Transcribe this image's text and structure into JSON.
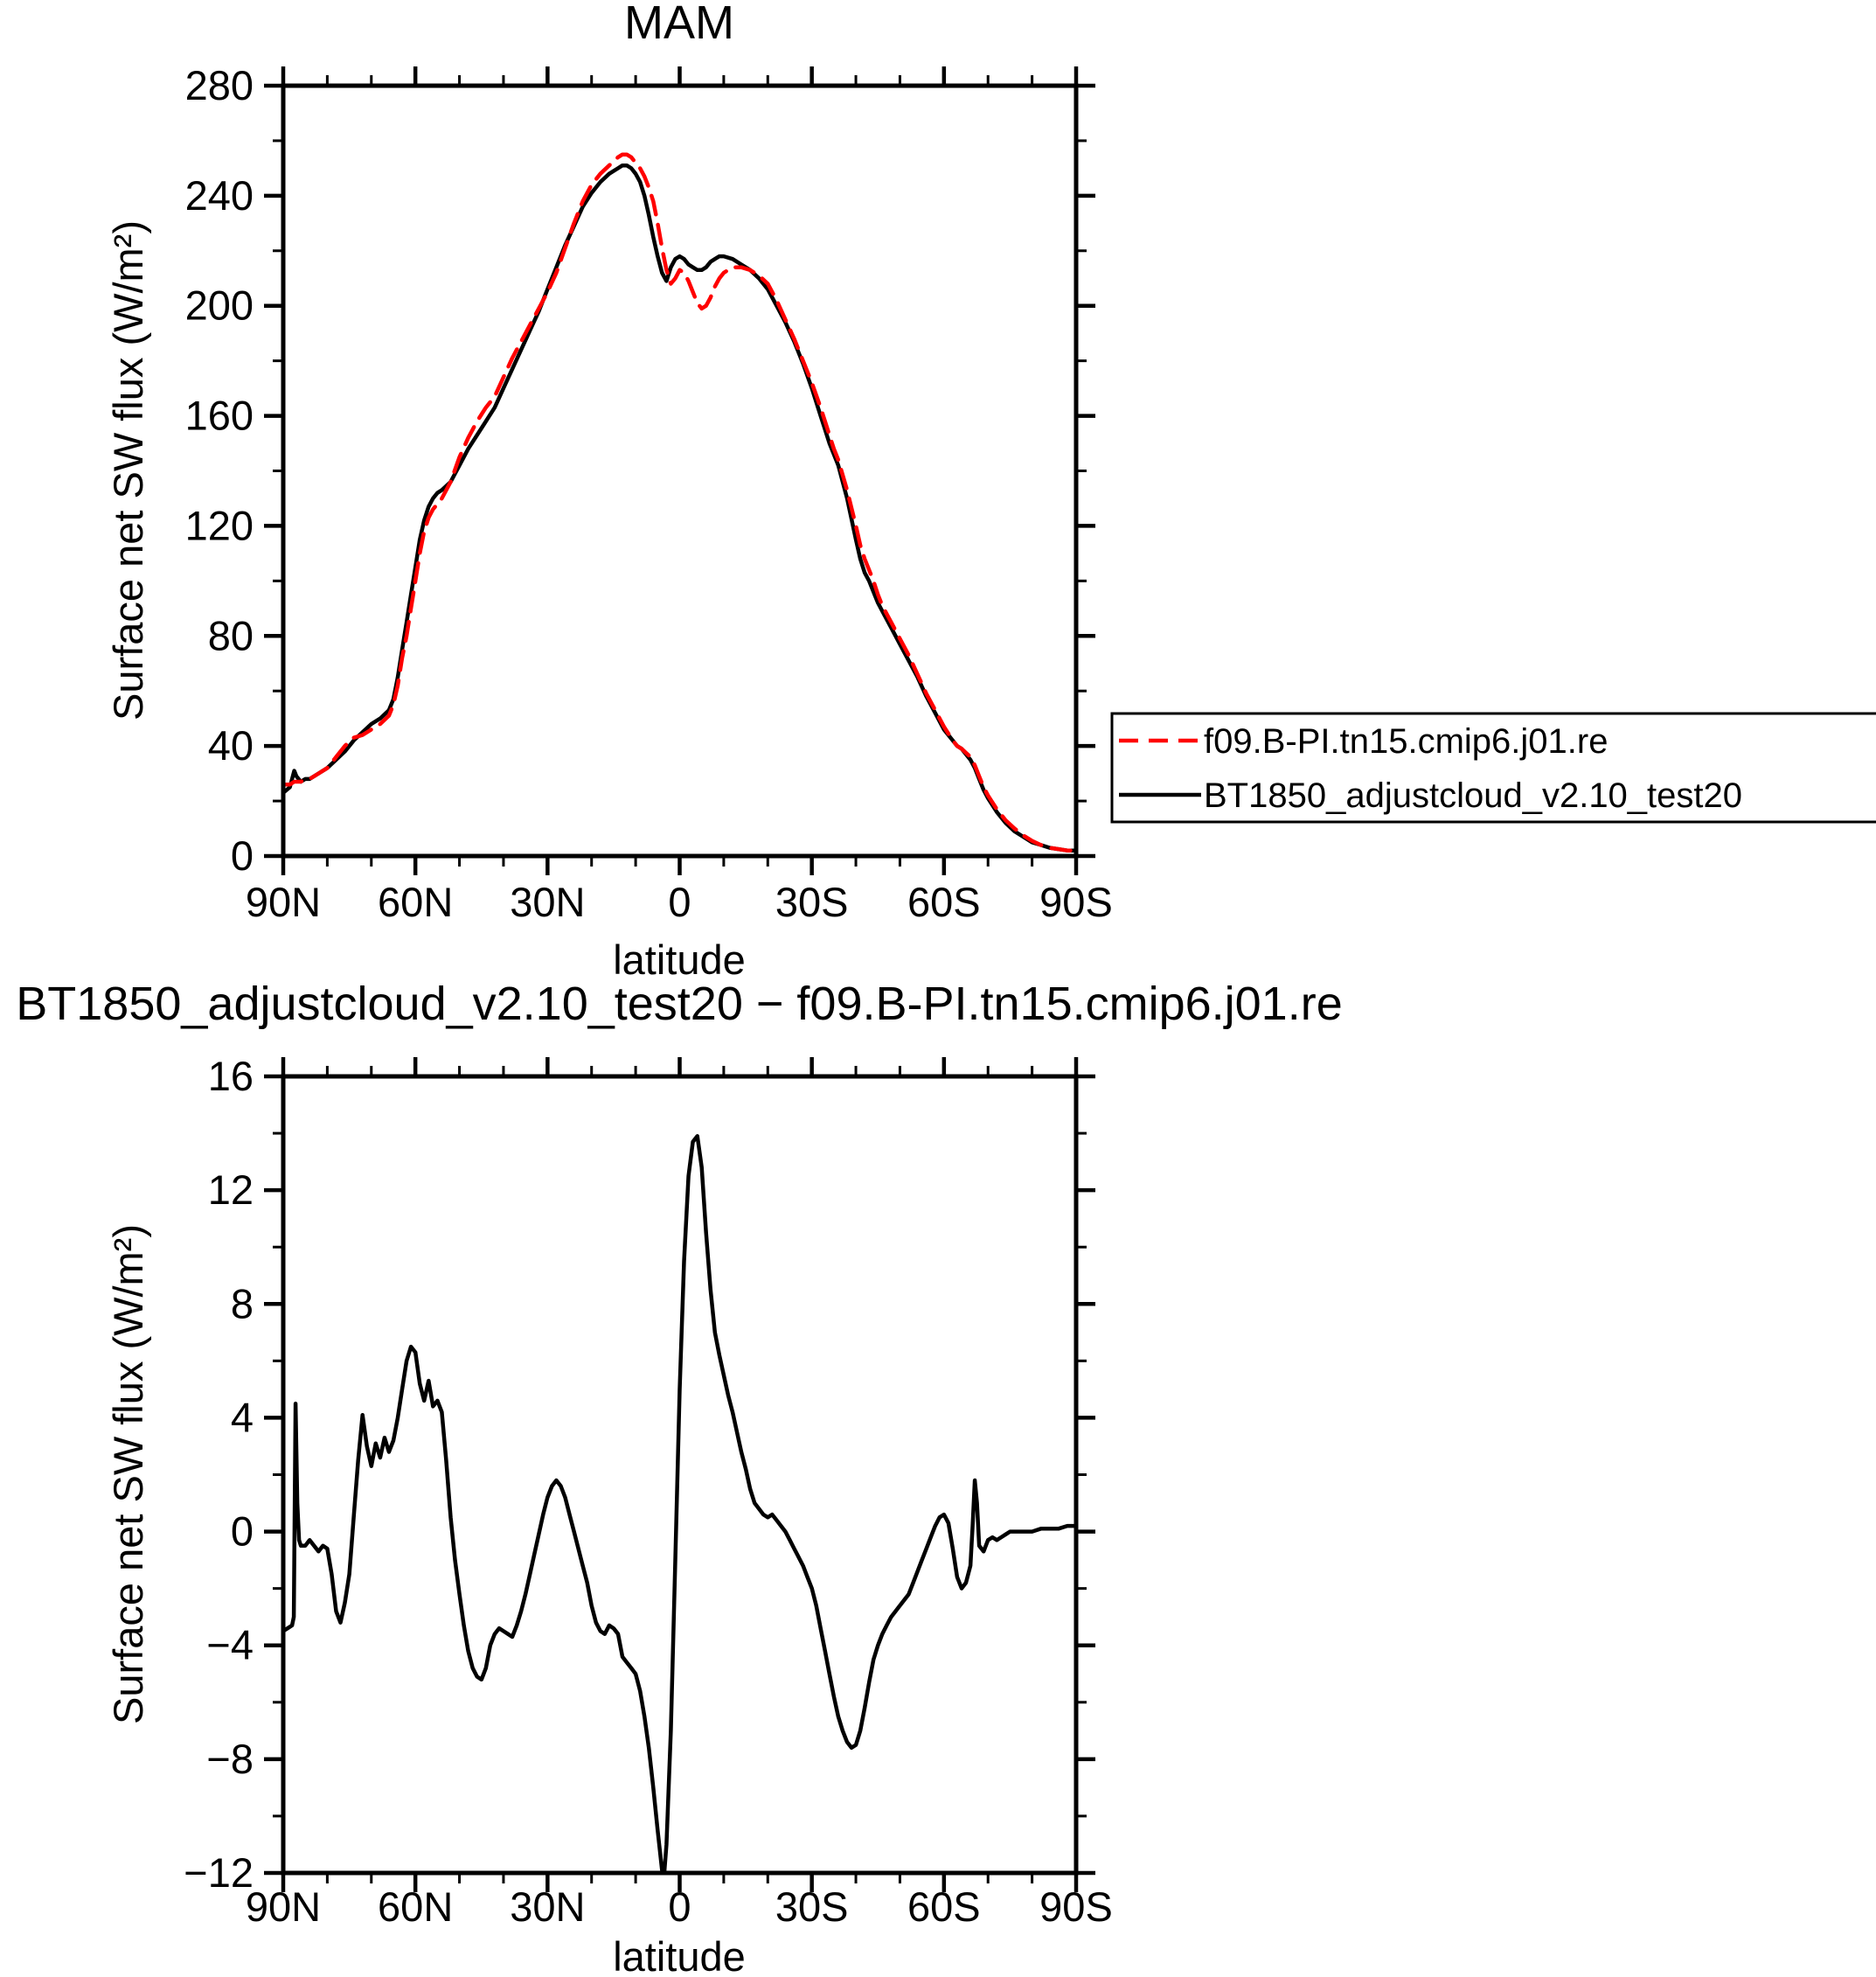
{
  "figure": {
    "background": "#ffffff",
    "text_color": "#000000",
    "frame_color": "#000000"
  },
  "chart_data": [
    {
      "type": "line",
      "title": "MAM",
      "xlabel": "latitude",
      "ylabel": "Surface net SW flux (W/m²)",
      "xlim": [
        90,
        -90
      ],
      "ylim": [
        0,
        280
      ],
      "grid": false,
      "legend_position": "outside-right",
      "xtick_values": [
        90,
        60,
        30,
        0,
        -30,
        -60,
        -90
      ],
      "xtick_labels": [
        "90N",
        "60N",
        "30N",
        "0",
        "30S",
        "60S",
        "90S"
      ],
      "xminor_step": 10,
      "ytick_values": [
        0,
        40,
        80,
        120,
        160,
        200,
        240,
        280
      ],
      "ytick_labels": [
        "0",
        "40",
        "80",
        "120",
        "160",
        "200",
        "240",
        "280"
      ],
      "yminor_step": 20,
      "x": [
        90,
        88.5,
        87.5,
        87,
        86,
        85,
        84,
        82,
        80,
        78,
        76,
        74,
        72,
        70,
        68,
        66,
        65,
        64,
        63,
        62,
        61,
        60,
        59,
        58,
        57,
        56,
        55,
        54,
        52,
        50,
        48,
        46,
        44,
        42,
        40,
        38,
        36,
        34,
        32,
        30,
        28,
        26,
        24,
        22,
        20,
        18,
        16,
        14,
        13,
        12,
        11,
        10,
        9,
        8,
        7,
        6,
        5,
        4,
        3,
        2,
        1,
        0,
        -1,
        -2,
        -3,
        -4,
        -5,
        -6,
        -7,
        -8,
        -9,
        -10,
        -12,
        -14,
        -16,
        -18,
        -20,
        -22,
        -24,
        -26,
        -28,
        -30,
        -32,
        -33,
        -34,
        -35,
        -36,
        -38,
        -40,
        -41,
        -42,
        -43,
        -44,
        -45,
        -46,
        -48,
        -50,
        -52,
        -54,
        -56,
        -58,
        -60,
        -62,
        -63,
        -64,
        -65,
        -66,
        -67,
        -68,
        -69,
        -70,
        -72,
        -74,
        -76,
        -78,
        -80,
        -82,
        -84,
        -86,
        -88,
        -90
      ],
      "series": [
        {
          "name": "f09.B-PI.tn15.cmip6.j01.re",
          "color": "#ff0000",
          "style": "dashed",
          "y": [
            26,
            26,
            27,
            27,
            27,
            28,
            28,
            30,
            32,
            36,
            40,
            43,
            44,
            46,
            48,
            51,
            55,
            62,
            72,
            80,
            90,
            100,
            110,
            118,
            123,
            126,
            128,
            130,
            136,
            145,
            152,
            158,
            163,
            167,
            174,
            181,
            187,
            193,
            199,
            205,
            212,
            221,
            230,
            238,
            244,
            248,
            251,
            254,
            255,
            255,
            254,
            252,
            250,
            247,
            243,
            238,
            230,
            221,
            213,
            208,
            210,
            213,
            212,
            209,
            205,
            201,
            199,
            200,
            203,
            207,
            210,
            212,
            214,
            214,
            213,
            211,
            208,
            202,
            195,
            188,
            180,
            172,
            163,
            158,
            153,
            148,
            144,
            133,
            120,
            113,
            108,
            104,
            100,
            95,
            91,
            85,
            79,
            73,
            66,
            59,
            53,
            47,
            42,
            40,
            39,
            37.5,
            36,
            33,
            29,
            25,
            22,
            17,
            13,
            10,
            7.5,
            5.5,
            4,
            3,
            2.5,
            2,
            2
          ]
        },
        {
          "name": "BT1850_adjustcloud_v2.10_test20",
          "color": "#000000",
          "style": "solid",
          "y": [
            23,
            25,
            31,
            29,
            27,
            28,
            28,
            30,
            32,
            35,
            38,
            42,
            45,
            48,
            50,
            53,
            57,
            65,
            75,
            85,
            95,
            105,
            115,
            122,
            127,
            130,
            132,
            133,
            136,
            142,
            148,
            153,
            158,
            163,
            170,
            177,
            184,
            191,
            198,
            206,
            214,
            222,
            229,
            236,
            241,
            245,
            248,
            250,
            251,
            251,
            250,
            248,
            245,
            240,
            233,
            225,
            218,
            212,
            209,
            214,
            217,
            218,
            217,
            215,
            214,
            213,
            213,
            214,
            216,
            217,
            218,
            218,
            217,
            215,
            213,
            210,
            206,
            200,
            194,
            187,
            179,
            170,
            160,
            155,
            150,
            146,
            142,
            130,
            115,
            108,
            103,
            100,
            96,
            92,
            89,
            83,
            77,
            71,
            65,
            58,
            52,
            46,
            42,
            40,
            39,
            37,
            35,
            32,
            28,
            24,
            21,
            16,
            12,
            9,
            7,
            5,
            4,
            3,
            2.5,
            2,
            2
          ]
        }
      ]
    },
    {
      "type": "line",
      "title": "BT1850_adjustcloud_v2.10_test20  −  f09.B-PI.tn15.cmip6.j01.re",
      "xlabel": "latitude",
      "ylabel": "Surface net SW flux (W/m²)",
      "xlim": [
        90,
        -90
      ],
      "ylim": [
        -12,
        16
      ],
      "grid": false,
      "xtick_values": [
        90,
        60,
        30,
        0,
        -30,
        -60,
        -90
      ],
      "xtick_labels": [
        "90N",
        "60N",
        "30N",
        "0",
        "30S",
        "60S",
        "90S"
      ],
      "xminor_step": 10,
      "ytick_values": [
        -12,
        -8,
        -4,
        0,
        4,
        8,
        12,
        16
      ],
      "ytick_labels": [
        "−12",
        "−8",
        "−4",
        "0",
        "4",
        "8",
        "12",
        "16"
      ],
      "yminor_step": 2,
      "x": [
        90,
        89,
        88,
        87.6,
        87.2,
        86.8,
        86.4,
        86,
        85,
        84,
        83,
        82,
        81,
        80,
        79,
        78,
        77,
        76,
        75,
        74,
        73,
        72,
        71,
        70,
        69,
        68,
        67,
        66,
        65,
        64,
        63,
        62,
        61,
        60,
        59,
        58,
        57,
        56,
        55,
        54,
        53,
        52,
        51,
        50,
        49,
        48,
        47,
        46,
        45,
        44,
        43,
        42,
        41,
        40,
        39,
        38,
        37,
        36,
        35,
        34,
        33,
        32,
        31,
        30,
        29,
        28,
        27,
        26,
        25,
        24,
        23,
        22,
        21,
        20,
        19,
        18,
        17,
        16,
        15,
        14,
        13,
        12,
        11,
        10,
        9,
        8,
        7,
        6,
        5,
        4,
        3.5,
        3,
        2,
        1,
        0,
        -1,
        -2,
        -3,
        -4,
        -5,
        -6,
        -7,
        -8,
        -9,
        -10,
        -11,
        -12,
        -13,
        -14,
        -15,
        -16,
        -17,
        -18,
        -19,
        -20,
        -21,
        -22,
        -23,
        -24,
        -25,
        -26,
        -27,
        -28,
        -29,
        -30,
        -31,
        -32,
        -33,
        -34,
        -35,
        -36,
        -37,
        -38,
        -39,
        -40,
        -41,
        -42,
        -43,
        -44,
        -45,
        -46,
        -47,
        -48,
        -49,
        -50,
        -51,
        -52,
        -53,
        -54,
        -55,
        -56,
        -57,
        -58,
        -59,
        -60,
        -61,
        -62,
        -63,
        -64,
        -65,
        -66,
        -66.5,
        -67,
        -67.5,
        -68,
        -69,
        -70,
        -71,
        -72,
        -73,
        -74,
        -75,
        -76,
        -78,
        -80,
        -82,
        -84,
        -86,
        -88,
        -90
      ],
      "series": [
        {
          "name": "BT1850_adjustcloud_v2.10_test20 − f09.B-PI.tn15.cmip6.j01.re",
          "color": "#000000",
          "style": "solid",
          "y": [
            -3.5,
            -3.4,
            -3.3,
            -3.0,
            4.5,
            1.0,
            -0.3,
            -0.5,
            -0.5,
            -0.3,
            -0.5,
            -0.7,
            -0.5,
            -0.6,
            -1.5,
            -2.8,
            -3.2,
            -2.5,
            -1.5,
            0.5,
            2.5,
            4.1,
            3.0,
            2.3,
            3.1,
            2.6,
            3.3,
            2.8,
            3.2,
            4.0,
            5.0,
            6.0,
            6.5,
            6.3,
            5.2,
            4.6,
            5.3,
            4.4,
            4.6,
            4.2,
            2.5,
            0.5,
            -1.0,
            -2.2,
            -3.3,
            -4.2,
            -4.8,
            -5.1,
            -5.2,
            -4.8,
            -4.0,
            -3.6,
            -3.4,
            -3.5,
            -3.6,
            -3.7,
            -3.3,
            -2.8,
            -2.2,
            -1.5,
            -0.8,
            -0.1,
            0.6,
            1.2,
            1.6,
            1.8,
            1.6,
            1.2,
            0.6,
            0.0,
            -0.6,
            -1.2,
            -1.8,
            -2.6,
            -3.2,
            -3.5,
            -3.6,
            -3.3,
            -3.4,
            -3.6,
            -4.4,
            -4.6,
            -4.8,
            -5.0,
            -5.6,
            -6.5,
            -7.6,
            -9.0,
            -10.5,
            -11.9,
            -12.0,
            -11.0,
            -7.0,
            -1.0,
            5.0,
            9.5,
            12.5,
            13.7,
            13.9,
            12.8,
            10.5,
            8.5,
            7.0,
            6.2,
            5.5,
            4.8,
            4.2,
            3.5,
            2.8,
            2.2,
            1.5,
            1.0,
            0.8,
            0.6,
            0.5,
            0.6,
            0.4,
            0.2,
            0.0,
            -0.3,
            -0.6,
            -0.9,
            -1.2,
            -1.6,
            -2.0,
            -2.6,
            -3.4,
            -4.2,
            -5.0,
            -5.8,
            -6.5,
            -7.0,
            -7.4,
            -7.6,
            -7.5,
            -7.0,
            -6.2,
            -5.3,
            -4.5,
            -4.0,
            -3.6,
            -3.3,
            -3.0,
            -2.8,
            -2.6,
            -2.4,
            -2.2,
            -1.8,
            -1.4,
            -1.0,
            -0.6,
            -0.2,
            0.2,
            0.5,
            0.6,
            0.3,
            -0.6,
            -1.6,
            -2.0,
            -1.8,
            -1.2,
            0.2,
            1.8,
            1.0,
            -0.5,
            -0.7,
            -0.3,
            -0.2,
            -0.3,
            -0.2,
            -0.1,
            0.0,
            0.0,
            0.0,
            0.0,
            0.1,
            0.1,
            0.1,
            0.2,
            0.2
          ]
        }
      ]
    }
  ]
}
